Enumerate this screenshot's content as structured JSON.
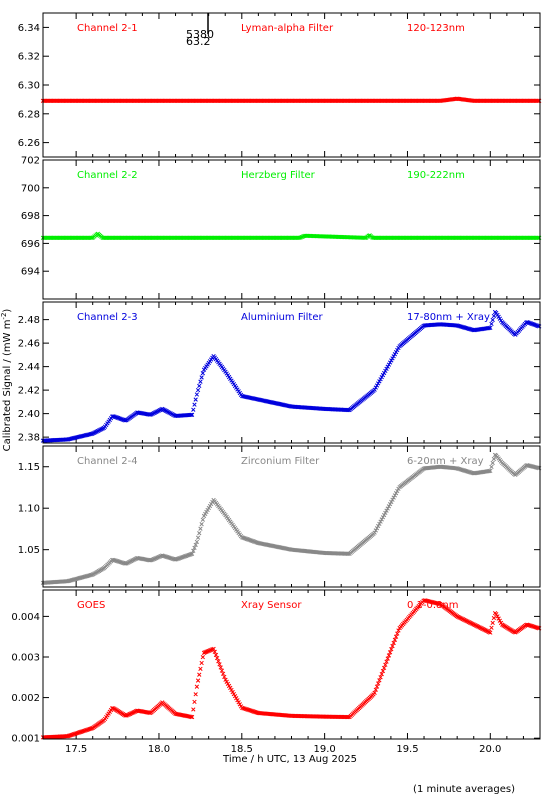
{
  "figure": {
    "ylabel": "Calibrated Signal / (mW m",
    "ylabel_sup": "-2",
    "ylabel_close": ")",
    "xlabel": "Time / h UTC, 13 Aug 2025",
    "footnote": "(1 minute averages)",
    "marker_label_top": "5380",
    "marker_label_bottom": "63.2"
  },
  "chart_data": [
    {
      "type": "scatter",
      "labels": [
        "Channel 2-1",
        "Lyman-alpha Filter",
        "120-123nm"
      ],
      "color": "#ff0000",
      "xlim": [
        17.3,
        20.3
      ],
      "ylim": [
        6.25,
        6.35
      ],
      "yticks": [
        "6.26",
        "6.28",
        "6.30",
        "6.32",
        "6.34"
      ],
      "xticks": [
        "17.5",
        "18.0",
        "18.5",
        "19.0",
        "19.5",
        "20.0"
      ],
      "series": [
        {
          "x": [
            17.3,
            19.7,
            19.8,
            19.9,
            20.3
          ],
          "y": [
            6.289,
            6.289,
            6.2905,
            6.289,
            6.289
          ]
        }
      ]
    },
    {
      "type": "scatter",
      "labels": [
        "Channel 2-2",
        "Herzberg Filter",
        "190-222nm"
      ],
      "color": "#00ee00",
      "xlim": [
        17.3,
        20.3
      ],
      "ylim": [
        692,
        702
      ],
      "yticks": [
        "694",
        "696",
        "698",
        "700",
        "702"
      ],
      "xticks": [
        "17.5",
        "18.0",
        "18.5",
        "19.0",
        "19.5",
        "20.0"
      ],
      "series": [
        {
          "x": [
            17.3,
            17.6,
            17.63,
            17.66,
            18.85,
            18.88,
            19.25,
            19.27,
            19.29,
            20.3
          ],
          "y": [
            696.4,
            696.4,
            696.7,
            696.4,
            696.4,
            696.55,
            696.4,
            696.6,
            696.4,
            696.4
          ]
        }
      ]
    },
    {
      "type": "scatter",
      "labels": [
        "Channel 2-3",
        "Aluminium Filter",
        "17-80nm + Xray"
      ],
      "color": "#0000dd",
      "xlim": [
        17.3,
        20.3
      ],
      "ylim": [
        2.375,
        2.495
      ],
      "yticks": [
        "2.38",
        "2.40",
        "2.42",
        "2.44",
        "2.46",
        "2.48"
      ],
      "xticks": [
        "17.5",
        "18.0",
        "18.5",
        "19.0",
        "19.5",
        "20.0"
      ],
      "series": [
        {
          "x": [
            17.3,
            17.45,
            17.6,
            17.67,
            17.72,
            17.8,
            17.87,
            17.95,
            18.02,
            18.1,
            18.2,
            18.23,
            18.27,
            18.33,
            18.4,
            18.5,
            18.6,
            18.8,
            19.0,
            19.15,
            19.3,
            19.45,
            19.6,
            19.7,
            19.8,
            19.9,
            20.0,
            20.03,
            20.07,
            20.15,
            20.22,
            20.3
          ],
          "y": [
            2.377,
            2.378,
            2.383,
            2.388,
            2.398,
            2.394,
            2.401,
            2.399,
            2.404,
            2.398,
            2.399,
            2.417,
            2.437,
            2.449,
            2.436,
            2.415,
            2.412,
            2.406,
            2.404,
            2.403,
            2.42,
            2.457,
            2.475,
            2.476,
            2.475,
            2.471,
            2.473,
            2.487,
            2.478,
            2.467,
            2.478,
            2.474
          ]
        }
      ]
    },
    {
      "type": "scatter",
      "labels": [
        "Channel 2-4",
        "Zirconium Filter",
        "6-20nm + Xray"
      ],
      "color": "#888888",
      "xlim": [
        17.3,
        20.3
      ],
      "ylim": [
        1.005,
        1.175
      ],
      "yticks": [
        "1.05",
        "1.10",
        "1.15"
      ],
      "xticks": [
        "17.5",
        "18.0",
        "18.5",
        "19.0",
        "19.5",
        "20.0"
      ],
      "series": [
        {
          "x": [
            17.3,
            17.45,
            17.6,
            17.67,
            17.72,
            17.8,
            17.87,
            17.95,
            18.02,
            18.1,
            18.2,
            18.23,
            18.27,
            18.33,
            18.4,
            18.5,
            18.6,
            18.8,
            19.0,
            19.15,
            19.3,
            19.45,
            19.6,
            19.7,
            19.8,
            19.9,
            20.0,
            20.03,
            20.07,
            20.15,
            20.22,
            20.3
          ],
          "y": [
            1.01,
            1.012,
            1.02,
            1.028,
            1.038,
            1.033,
            1.04,
            1.037,
            1.043,
            1.038,
            1.045,
            1.06,
            1.09,
            1.11,
            1.092,
            1.065,
            1.058,
            1.05,
            1.046,
            1.045,
            1.07,
            1.125,
            1.148,
            1.15,
            1.148,
            1.142,
            1.145,
            1.165,
            1.155,
            1.14,
            1.152,
            1.148
          ]
        }
      ]
    },
    {
      "type": "scatter",
      "labels": [
        "GOES",
        "Xray Sensor",
        "0.1-0.8nm"
      ],
      "color": "#ff0000",
      "xlim": [
        17.3,
        20.3
      ],
      "ylim": [
        0.00098,
        0.00465
      ],
      "yticks": [
        "0.001",
        "0.002",
        "0.003",
        "0.004"
      ],
      "xticks": [
        "17.5",
        "18.0",
        "18.5",
        "19.0",
        "19.5",
        "20.0"
      ],
      "series": [
        {
          "x": [
            17.3,
            17.45,
            17.6,
            17.67,
            17.72,
            17.8,
            17.87,
            17.95,
            18.02,
            18.1,
            18.2,
            18.23,
            18.27,
            18.33,
            18.4,
            18.5,
            18.6,
            18.8,
            19.0,
            19.15,
            19.3,
            19.45,
            19.6,
            19.7,
            19.8,
            19.9,
            20.0,
            20.03,
            20.07,
            20.15,
            20.22,
            20.3
          ],
          "y": [
            0.00102,
            0.00105,
            0.00125,
            0.00145,
            0.00175,
            0.00155,
            0.00168,
            0.00162,
            0.00188,
            0.0016,
            0.00152,
            0.0023,
            0.0031,
            0.0032,
            0.00245,
            0.00175,
            0.00162,
            0.00155,
            0.00153,
            0.00152,
            0.0021,
            0.0037,
            0.0044,
            0.0043,
            0.004,
            0.0038,
            0.0036,
            0.0041,
            0.0038,
            0.0036,
            0.0038,
            0.0037
          ]
        }
      ]
    }
  ]
}
